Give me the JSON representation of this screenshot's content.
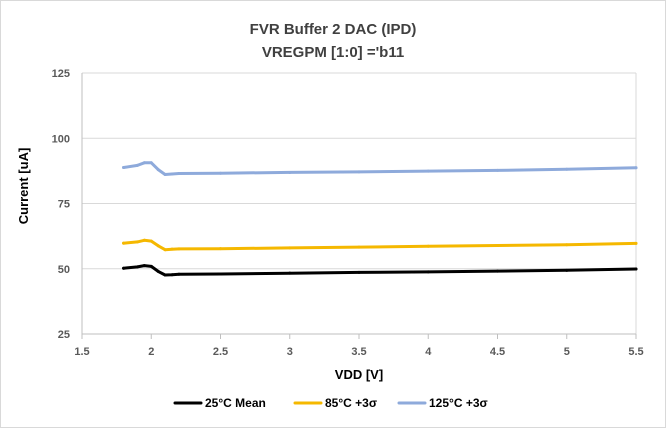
{
  "chart_data": {
    "type": "line",
    "title": "FVR Buffer 2 DAC (IPD)",
    "subtitle": "VREGPM [1:0] ='b11",
    "xlabel": "VDD [V]",
    "ylabel": "Current [uA]",
    "xlim": [
      1.5,
      5.5
    ],
    "ylim": [
      25,
      125
    ],
    "x_ticks": [
      1.5,
      2,
      2.5,
      3,
      3.5,
      4,
      4.5,
      5,
      5.5
    ],
    "x_tick_labels": [
      "1.5",
      "2",
      "2.5",
      "3",
      "3.5",
      "4",
      "4.5",
      "5",
      "5.5"
    ],
    "y_ticks": [
      25,
      50,
      75,
      100,
      125
    ],
    "y_tick_labels": [
      "25",
      "50",
      "75",
      "100",
      "125"
    ],
    "grid": "horizontal",
    "legend_position": "bottom",
    "series": [
      {
        "name": "25°C Mean",
        "color": "#000000",
        "x": [
          1.8,
          1.9,
          1.95,
          2.0,
          2.05,
          2.1,
          2.15,
          2.2,
          2.5,
          3.0,
          3.5,
          4.0,
          4.5,
          5.0,
          5.5
        ],
        "values": [
          50.2,
          50.7,
          51.2,
          50.9,
          49.0,
          47.6,
          47.7,
          47.9,
          48.0,
          48.3,
          48.6,
          48.8,
          49.1,
          49.4,
          49.9
        ]
      },
      {
        "name": "85°C +3σ",
        "color": "#f5b800",
        "x": [
          1.8,
          1.9,
          1.95,
          2.0,
          2.05,
          2.1,
          2.15,
          2.2,
          2.5,
          3.0,
          3.5,
          4.0,
          4.5,
          5.0,
          5.5
        ],
        "values": [
          59.8,
          60.3,
          60.9,
          60.6,
          58.8,
          57.3,
          57.5,
          57.6,
          57.7,
          58.0,
          58.3,
          58.6,
          58.9,
          59.2,
          59.7
        ]
      },
      {
        "name": "125°C +3σ",
        "color": "#8eaadb",
        "x": [
          1.8,
          1.9,
          1.95,
          2.0,
          2.05,
          2.1,
          2.15,
          2.2,
          2.5,
          3.0,
          3.5,
          4.0,
          4.5,
          5.0,
          5.5
        ],
        "values": [
          88.8,
          89.6,
          90.6,
          90.6,
          88.0,
          86.1,
          86.3,
          86.5,
          86.6,
          86.9,
          87.1,
          87.4,
          87.7,
          88.1,
          88.7
        ]
      }
    ]
  }
}
